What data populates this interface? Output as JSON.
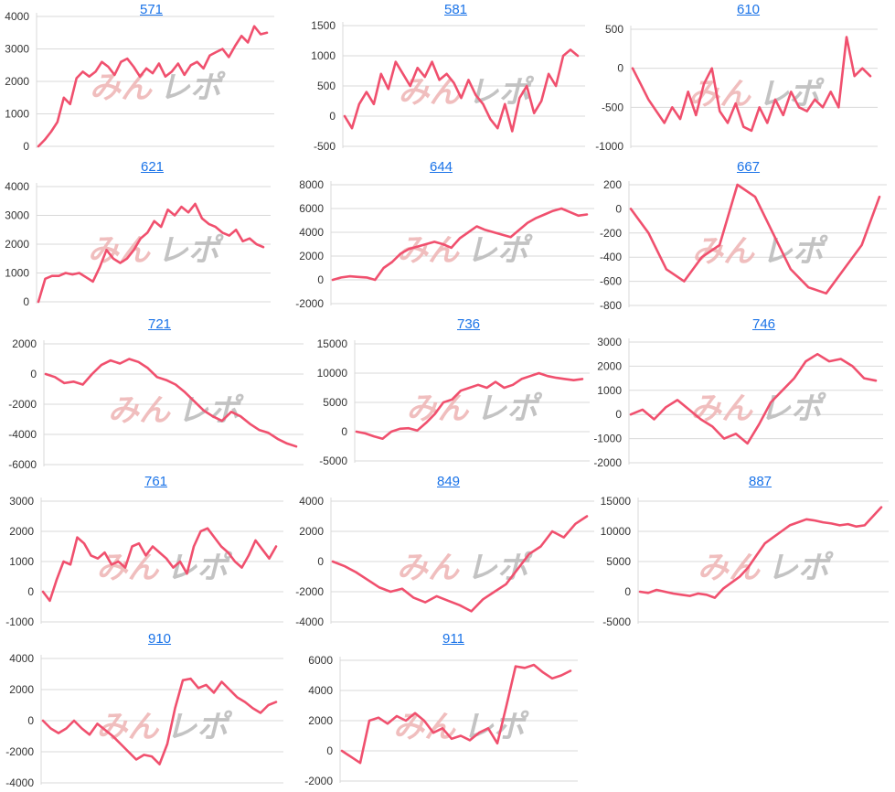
{
  "watermark": {
    "left": "みん",
    "right": "レポ"
  },
  "colors": {
    "line": "#f0506e",
    "grid": "#d9d9d9",
    "axis_text": "#333333",
    "title_link": "#1a73e8",
    "watermark_left": "#efb7b7",
    "watermark_right": "#bdbdbd"
  },
  "chart_data": [
    {
      "type": "line",
      "title": "571",
      "yticks": [
        0,
        1000,
        2000,
        3000,
        4000
      ],
      "ylim": [
        0,
        4000
      ],
      "values": [
        0,
        200,
        450,
        750,
        1500,
        1300,
        2100,
        2300,
        2150,
        2300,
        2600,
        2450,
        2200,
        2600,
        2700,
        2450,
        2150,
        2400,
        2250,
        2550,
        2150,
        2300,
        2550,
        2200,
        2500,
        2600,
        2400,
        2800,
        2900,
        3000,
        2750,
        3100,
        3400,
        3200,
        3700,
        3450,
        3500
      ]
    },
    {
      "type": "line",
      "title": "581",
      "yticks": [
        -500,
        0,
        500,
        1000,
        1500
      ],
      "ylim": [
        -500,
        1500
      ],
      "values": [
        0,
        -200,
        200,
        400,
        200,
        700,
        450,
        900,
        700,
        500,
        800,
        650,
        900,
        600,
        700,
        550,
        300,
        600,
        350,
        200,
        -50,
        -200,
        200,
        -250,
        300,
        500,
        50,
        250,
        700,
        500,
        1000,
        1100,
        1000
      ]
    },
    {
      "type": "line",
      "title": "610",
      "yticks": [
        -1000,
        -500,
        0,
        500
      ],
      "ylim": [
        -1000,
        500
      ],
      "values": [
        0,
        -200,
        -400,
        -550,
        -700,
        -500,
        -650,
        -300,
        -600,
        -200,
        0,
        -550,
        -700,
        -450,
        -750,
        -800,
        -500,
        -700,
        -400,
        -600,
        -300,
        -500,
        -550,
        -400,
        -500,
        -300,
        -500,
        400,
        -100,
        0,
        -100
      ]
    },
    {
      "type": "line",
      "title": "621",
      "yticks": [
        0,
        1000,
        2000,
        3000,
        4000
      ],
      "ylim": [
        0,
        4000
      ],
      "values": [
        0,
        800,
        900,
        900,
        1000,
        950,
        1000,
        850,
        700,
        1200,
        1800,
        1500,
        1350,
        1500,
        1800,
        2200,
        2400,
        2800,
        2600,
        3200,
        3000,
        3300,
        3100,
        3400,
        2900,
        2700,
        2600,
        2400,
        2300,
        2500,
        2100,
        2200,
        2000,
        1900
      ]
    },
    {
      "type": "line",
      "title": "644",
      "yticks": [
        -2000,
        0,
        2000,
        4000,
        6000,
        8000
      ],
      "ylim": [
        -2000,
        8000
      ],
      "values": [
        0,
        200,
        300,
        250,
        200,
        0,
        1000,
        1500,
        2200,
        2600,
        2800,
        3000,
        3200,
        3000,
        2700,
        3500,
        4000,
        4500,
        4200,
        4000,
        3800,
        3600,
        4200,
        4800,
        5200,
        5500,
        5800,
        6000,
        5700,
        5400,
        5500
      ]
    },
    {
      "type": "line",
      "title": "667",
      "yticks": [
        -800,
        -600,
        -400,
        -200,
        0,
        200
      ],
      "ylim": [
        -800,
        200
      ],
      "values": [
        0,
        -200,
        -500,
        -600,
        -400,
        -300,
        200,
        100,
        -200,
        -500,
        -650,
        -700,
        -500,
        -300,
        100
      ]
    },
    {
      "type": "line",
      "title": "721",
      "yticks": [
        -6000,
        -4000,
        -2000,
        0,
        2000
      ],
      "ylim": [
        -6000,
        2000
      ],
      "values": [
        0,
        -200,
        -600,
        -500,
        -700,
        0,
        600,
        900,
        700,
        1000,
        800,
        400,
        -200,
        -400,
        -700,
        -1200,
        -1800,
        -2400,
        -2800,
        -3100,
        -2500,
        -2800,
        -3300,
        -3700,
        -3900,
        -4300,
        -4600,
        -4800
      ]
    },
    {
      "type": "line",
      "title": "736",
      "yticks": [
        -5000,
        0,
        5000,
        10000,
        15000
      ],
      "ylim": [
        -5000,
        15000
      ],
      "values": [
        0,
        -300,
        -800,
        -1200,
        0,
        500,
        600,
        200,
        1500,
        3000,
        5000,
        5500,
        7000,
        7500,
        8000,
        7500,
        8500,
        7500,
        8000,
        9000,
        9500,
        10000,
        9500,
        9200,
        9000,
        8800,
        9000
      ]
    },
    {
      "type": "line",
      "title": "746",
      "yticks": [
        -2000,
        -1000,
        0,
        1000,
        2000,
        3000
      ],
      "ylim": [
        -2000,
        3000
      ],
      "values": [
        0,
        200,
        -200,
        300,
        600,
        200,
        -200,
        -500,
        -1000,
        -800,
        -1200,
        -400,
        500,
        1000,
        1500,
        2200,
        2500,
        2200,
        2300,
        2000,
        1500,
        1400
      ]
    },
    {
      "type": "line",
      "title": "761",
      "yticks": [
        -1000,
        0,
        1000,
        2000,
        3000
      ],
      "ylim": [
        -1000,
        3000
      ],
      "values": [
        0,
        -300,
        400,
        1000,
        900,
        1800,
        1600,
        1200,
        1100,
        1300,
        900,
        1000,
        800,
        1500,
        1600,
        1200,
        1500,
        1300,
        1100,
        800,
        1000,
        600,
        1500,
        2000,
        2100,
        1800,
        1500,
        1300,
        1000,
        800,
        1200,
        1700,
        1400,
        1100,
        1500
      ]
    },
    {
      "type": "line",
      "title": "849",
      "yticks": [
        -4000,
        -2000,
        0,
        2000,
        4000
      ],
      "ylim": [
        -4000,
        4000
      ],
      "values": [
        0,
        -300,
        -700,
        -1200,
        -1700,
        -2000,
        -1800,
        -2400,
        -2700,
        -2300,
        -2600,
        -2900,
        -3300,
        -2500,
        -2000,
        -1500,
        -500,
        500,
        1000,
        2000,
        1600,
        2500,
        3000
      ]
    },
    {
      "type": "line",
      "title": "887",
      "yticks": [
        -5000,
        0,
        5000,
        10000,
        15000
      ],
      "ylim": [
        -5000,
        15000
      ],
      "values": [
        0,
        -200,
        300,
        0,
        -300,
        -500,
        -700,
        -300,
        -500,
        -1000,
        500,
        1500,
        2500,
        4000,
        6000,
        8000,
        9000,
        10000,
        11000,
        11500,
        12000,
        11800,
        11500,
        11300,
        11000,
        11200,
        10800,
        11000,
        12500,
        14000
      ]
    },
    {
      "type": "line",
      "title": "910",
      "yticks": [
        -4000,
        -2000,
        0,
        2000,
        4000
      ],
      "ylim": [
        -4000,
        4000
      ],
      "values": [
        0,
        -500,
        -800,
        -500,
        0,
        -500,
        -900,
        -200,
        -600,
        -1000,
        -1500,
        -2000,
        -2500,
        -2200,
        -2300,
        -2800,
        -1500,
        800,
        2600,
        2700,
        2100,
        2300,
        1800,
        2500,
        2000,
        1500,
        1200,
        800,
        500,
        1000,
        1200
      ]
    },
    {
      "type": "line",
      "title": "911",
      "yticks": [
        -2000,
        0,
        2000,
        4000,
        6000
      ],
      "ylim": [
        -2000,
        6000
      ],
      "values": [
        0,
        -400,
        -800,
        2000,
        2200,
        1800,
        2300,
        2000,
        2500,
        2000,
        1200,
        1500,
        800,
        1000,
        700,
        1200,
        1500,
        500,
        3000,
        5600,
        5500,
        5700,
        5200,
        4800,
        5000,
        5300
      ]
    }
  ]
}
